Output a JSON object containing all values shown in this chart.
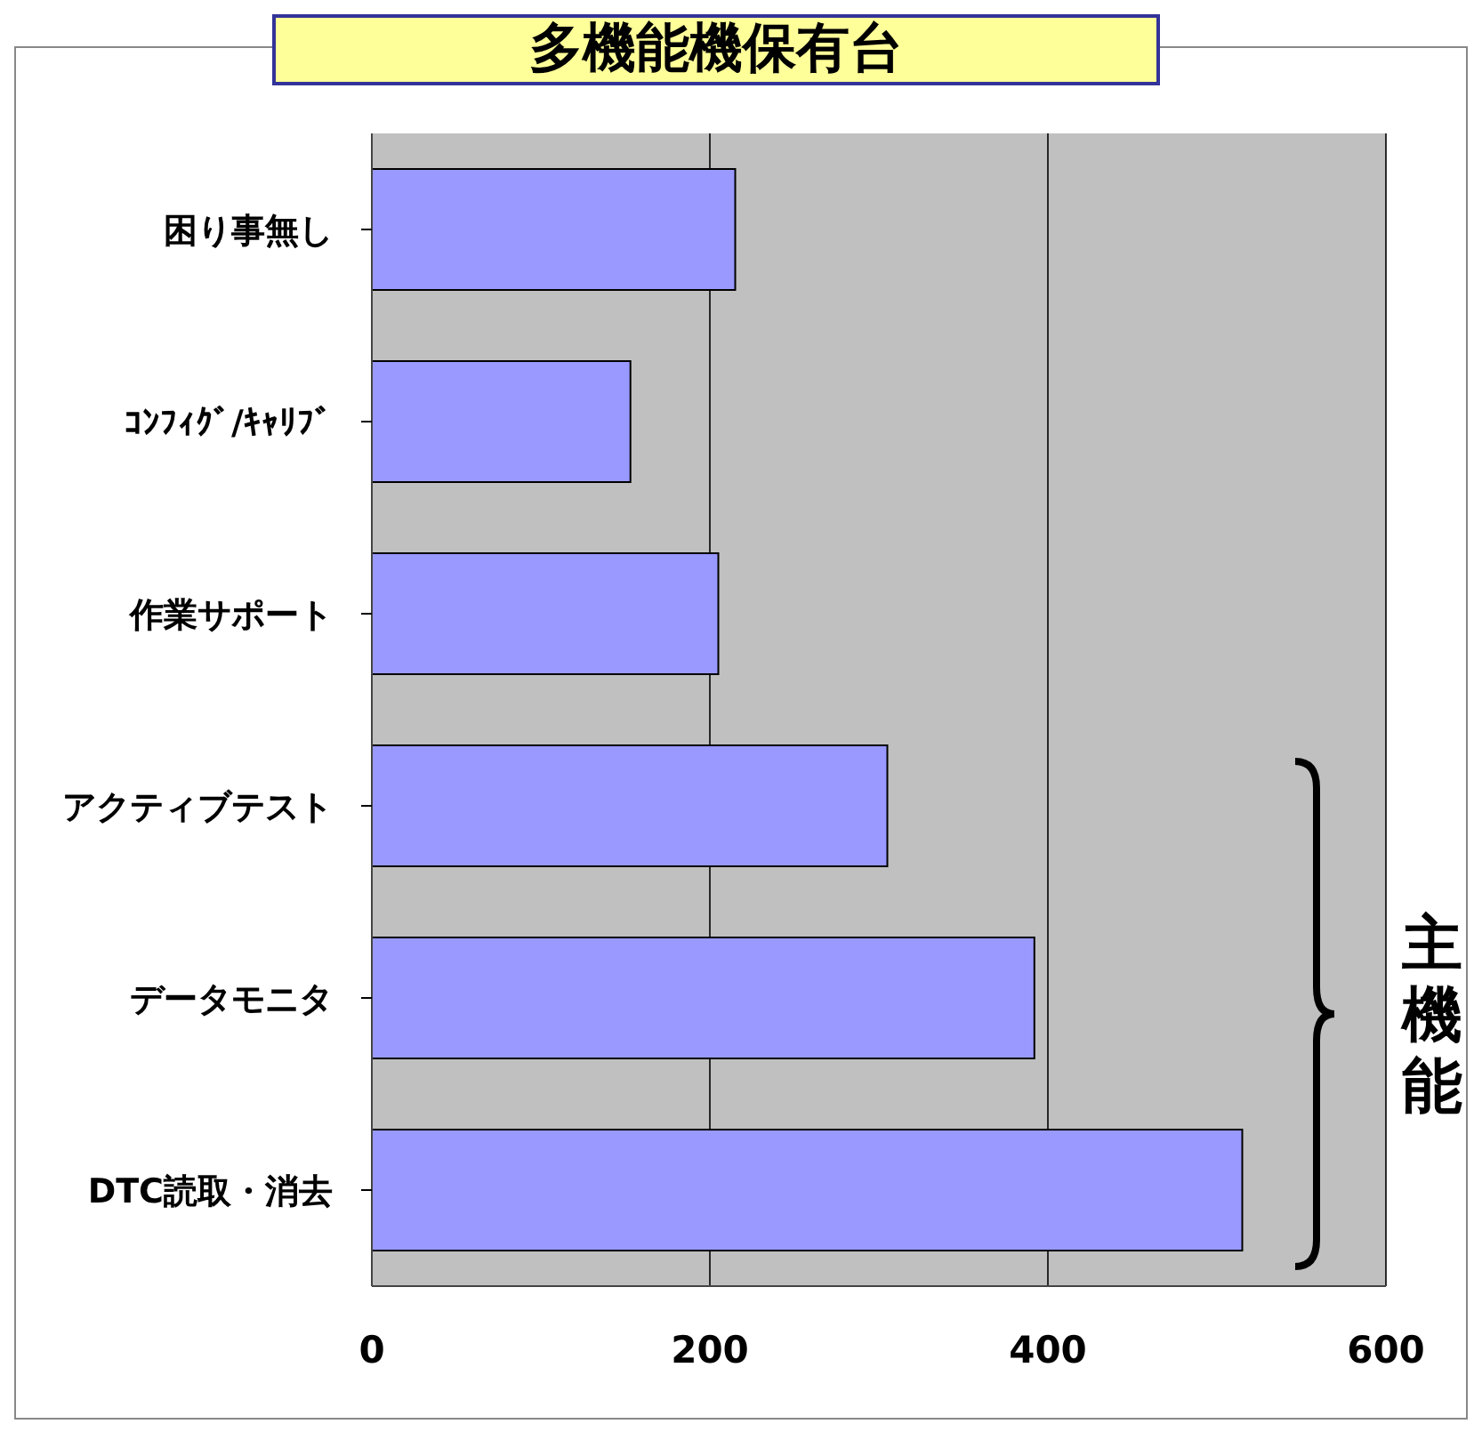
{
  "chart_data": {
    "type": "bar",
    "orientation": "horizontal",
    "title": "多機能機保有台",
    "categories": [
      "困り事無し",
      "ｺﾝﾌｨｸﾞ/ｷｬﾘﾌﾞ",
      "作業サポート",
      "アクティブテスト",
      "データモニタ",
      "DTC読取・消去"
    ],
    "values": [
      215,
      153,
      205,
      305,
      392,
      515
    ],
    "color": "#9999ff",
    "xlim": [
      0,
      600
    ],
    "xticks": [
      0,
      200,
      400,
      600
    ],
    "grid": "x",
    "annotations": [
      "主機能"
    ]
  }
}
